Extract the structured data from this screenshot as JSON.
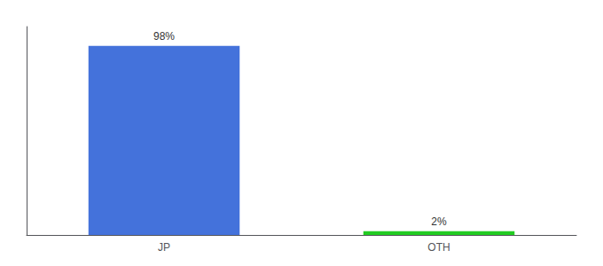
{
  "chart_data": {
    "type": "bar",
    "categories": [
      "JP",
      "OTH"
    ],
    "values": [
      98,
      2
    ],
    "value_labels": [
      "98%",
      "2%"
    ],
    "colors": [
      "#4472db",
      "#22cc22"
    ],
    "ylim": [
      0,
      108
    ],
    "yticks": [],
    "grid": false,
    "data_labels": true,
    "tick_labels": "x"
  }
}
